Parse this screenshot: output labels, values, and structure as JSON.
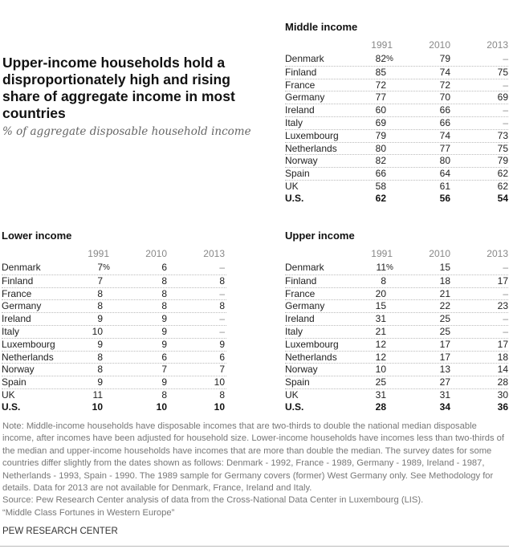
{
  "title": "Upper-income households hold a disproportionately high and rising share of aggregate income in most countries",
  "subtitle": "% of aggregate disposable household income",
  "chart_data": [
    {
      "type": "table",
      "title": "Middle income",
      "columns": [
        "1991",
        "2010",
        "2013"
      ],
      "rows": [
        {
          "country": "Denmark",
          "values": [
            "82",
            "79",
            "–"
          ]
        },
        {
          "country": "Finland",
          "values": [
            "85",
            "74",
            "75"
          ]
        },
        {
          "country": "France",
          "values": [
            "72",
            "72",
            "–"
          ]
        },
        {
          "country": "Germany",
          "values": [
            "77",
            "70",
            "69"
          ]
        },
        {
          "country": "Ireland",
          "values": [
            "60",
            "66",
            "–"
          ]
        },
        {
          "country": "Italy",
          "values": [
            "69",
            "66",
            "–"
          ]
        },
        {
          "country": "Luxembourg",
          "values": [
            "79",
            "74",
            "73"
          ]
        },
        {
          "country": "Netherlands",
          "values": [
            "80",
            "77",
            "75"
          ]
        },
        {
          "country": "Norway",
          "values": [
            "82",
            "80",
            "79"
          ]
        },
        {
          "country": "Spain",
          "values": [
            "66",
            "64",
            "62"
          ]
        },
        {
          "country": "UK",
          "values": [
            "58",
            "61",
            "62"
          ]
        },
        {
          "country": "U.S.",
          "values": [
            "62",
            "56",
            "54"
          ]
        }
      ]
    },
    {
      "type": "table",
      "title": "Lower income",
      "columns": [
        "1991",
        "2010",
        "2013"
      ],
      "rows": [
        {
          "country": "Denmark",
          "values": [
            "7",
            "6",
            "–"
          ]
        },
        {
          "country": "Finland",
          "values": [
            "7",
            "8",
            "8"
          ]
        },
        {
          "country": "France",
          "values": [
            "8",
            "8",
            "–"
          ]
        },
        {
          "country": "Germany",
          "values": [
            "8",
            "8",
            "8"
          ]
        },
        {
          "country": "Ireland",
          "values": [
            "9",
            "9",
            "–"
          ]
        },
        {
          "country": "Italy",
          "values": [
            "10",
            "9",
            "–"
          ]
        },
        {
          "country": "Luxembourg",
          "values": [
            "9",
            "9",
            "9"
          ]
        },
        {
          "country": "Netherlands",
          "values": [
            "8",
            "6",
            "6"
          ]
        },
        {
          "country": "Norway",
          "values": [
            "8",
            "7",
            "7"
          ]
        },
        {
          "country": "Spain",
          "values": [
            "9",
            "9",
            "10"
          ]
        },
        {
          "country": "UK",
          "values": [
            "11",
            "8",
            "8"
          ]
        },
        {
          "country": "U.S.",
          "values": [
            "10",
            "10",
            "10"
          ]
        }
      ]
    },
    {
      "type": "table",
      "title": "Upper income",
      "columns": [
        "1991",
        "2010",
        "2013"
      ],
      "rows": [
        {
          "country": "Denmark",
          "values": [
            "11",
            "15",
            "–"
          ]
        },
        {
          "country": "Finland",
          "values": [
            "8",
            "18",
            "17"
          ]
        },
        {
          "country": "France",
          "values": [
            "20",
            "21",
            "–"
          ]
        },
        {
          "country": "Germany",
          "values": [
            "15",
            "22",
            "23"
          ]
        },
        {
          "country": "Ireland",
          "values": [
            "31",
            "25",
            "–"
          ]
        },
        {
          "country": "Italy",
          "values": [
            "21",
            "25",
            "–"
          ]
        },
        {
          "country": "Luxembourg",
          "values": [
            "12",
            "17",
            "17"
          ]
        },
        {
          "country": "Netherlands",
          "values": [
            "12",
            "17",
            "18"
          ]
        },
        {
          "country": "Norway",
          "values": [
            "10",
            "13",
            "14"
          ]
        },
        {
          "country": "Spain",
          "values": [
            "25",
            "27",
            "28"
          ]
        },
        {
          "country": "UK",
          "values": [
            "31",
            "31",
            "30"
          ]
        },
        {
          "country": "U.S.",
          "values": [
            "28",
            "34",
            "36"
          ]
        }
      ]
    }
  ],
  "percent_sign": "%",
  "note": "Note: Middle-income households have disposable incomes that are two-thirds to double the national median disposable income, after incomes have been adjusted for household size. Lower-income households have incomes less than two-thirds of the median and upper-income households have incomes that are more than double the median. The survey dates for some countries differ slightly from the dates shown as follows: Denmark - 1992, France - 1989, Germany - 1989, Ireland - 1987, Netherlands - 1993, Spain - 1990. The 1989 sample for Germany covers (former) West Germany only. See Methodology for details. Data for 2013 are not available for Denmark, France, Ireland and Italy.",
  "source": "Source: Pew Research Center analysis of data from the Cross-National Data Center in Luxembourg (LIS).",
  "report": "“Middle Class Fortunes in Western Europe”",
  "footer": "PEW RESEARCH CENTER"
}
